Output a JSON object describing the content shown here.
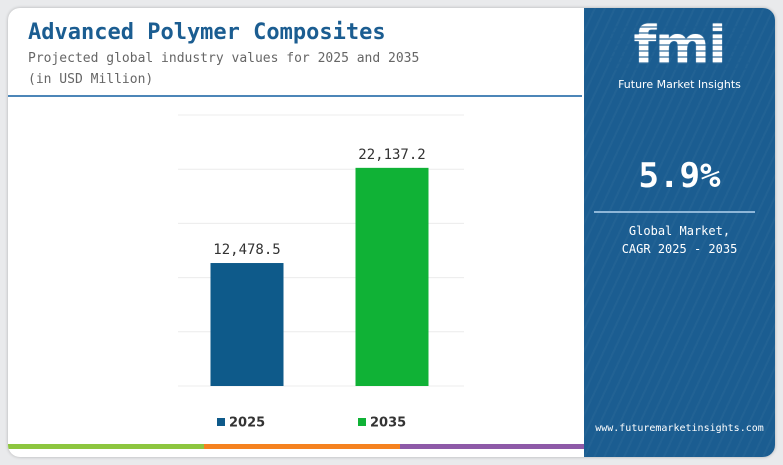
{
  "header": {
    "title": "Advanced Polymer Composites",
    "subtitle": "Projected global industry values for 2025 and 2035",
    "unit": "(in USD Million)"
  },
  "brand": {
    "logo": "fmi",
    "name": "Future Market Insights",
    "website": "www.futuremarketinsights.com"
  },
  "stat": {
    "value": "5.9%",
    "label_line1": "Global Market,",
    "label_line2": "CAGR 2025 - 2035"
  },
  "colors": {
    "brand_blue": "#1b5d91",
    "series_2025": "#0e5a8a",
    "series_2035": "#10b236",
    "bar_green": "#8dc63f",
    "bar_orange": "#f58220",
    "bar_purple": "#8e5aa8"
  },
  "chart_data": {
    "type": "bar",
    "categories": [
      "2025",
      "2035"
    ],
    "values": [
      12478.5,
      22137.2
    ],
    "value_labels": [
      "12,478.5",
      "22,137.2"
    ],
    "ylim": [
      0,
      27500
    ],
    "grid": true,
    "legend_position": "bottom",
    "legend": [
      "2025",
      "2035"
    ]
  }
}
